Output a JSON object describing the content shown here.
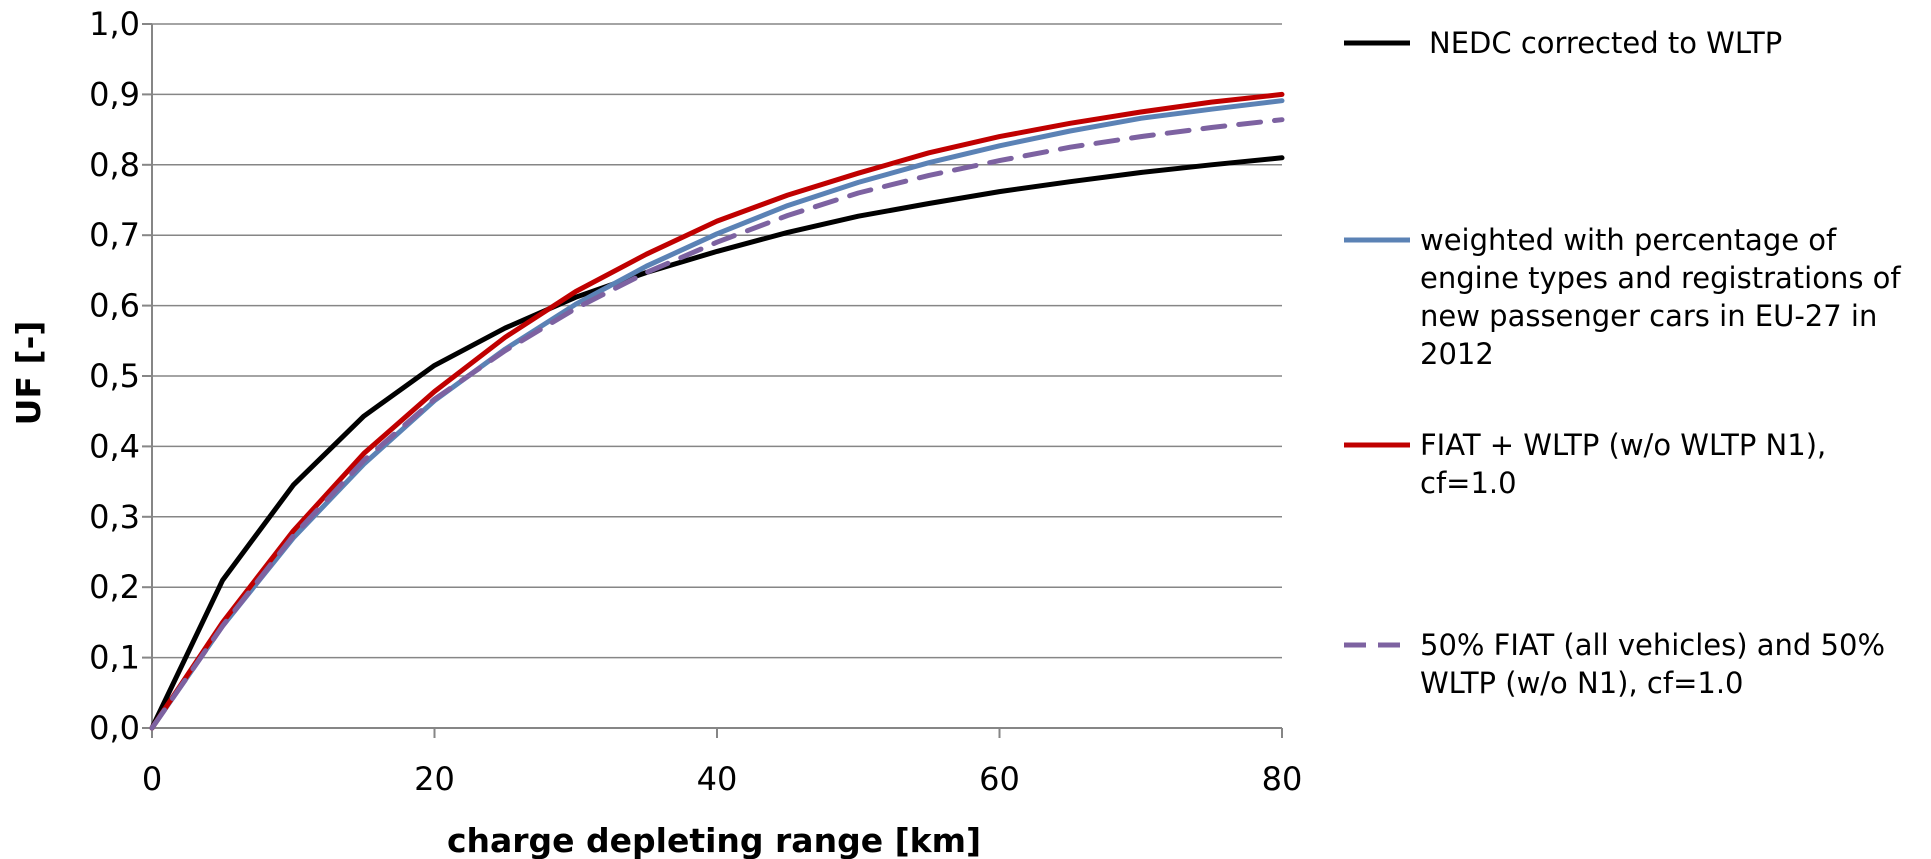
{
  "chart_data": {
    "type": "line",
    "title": "",
    "xlabel": "charge depleting range [km]",
    "ylabel": "UF [-]",
    "xlim": [
      0,
      80
    ],
    "ylim": [
      0,
      1
    ],
    "x_ticks": [
      "0",
      "20",
      "40",
      "60",
      "80"
    ],
    "y_ticks": [
      "0,0",
      "0,1",
      "0,2",
      "0,3",
      "0,4",
      "0,5",
      "0,6",
      "0,7",
      "0,8",
      "0,9",
      "1,0"
    ],
    "grid": true,
    "legend_position": "right",
    "series": [
      {
        "name": "NEDC corrected to WLTP",
        "color": "#000000",
        "dash": "solid",
        "x": [
          0,
          5,
          10,
          15,
          20,
          25,
          30,
          35,
          40,
          45,
          50,
          55,
          60,
          65,
          70,
          75,
          80
        ],
        "y": [
          0.0,
          0.21,
          0.345,
          0.443,
          0.515,
          0.568,
          0.612,
          0.647,
          0.677,
          0.704,
          0.727,
          0.745,
          0.762,
          0.776,
          0.789,
          0.8,
          0.81
        ],
        "legend_lines": [
          "NEDC corrected to WLTP"
        ]
      },
      {
        "name": "weighted with percentage of engine types and registrations of new passenger cars in EU-27 in 2012",
        "color": "#5b82b5",
        "dash": "solid",
        "x": [
          0,
          5,
          10,
          15,
          20,
          25,
          30,
          35,
          40,
          45,
          50,
          55,
          60,
          65,
          70,
          75,
          80
        ],
        "y": [
          0.0,
          0.145,
          0.27,
          0.375,
          0.465,
          0.538,
          0.602,
          0.656,
          0.702,
          0.742,
          0.775,
          0.803,
          0.827,
          0.848,
          0.866,
          0.879,
          0.891
        ],
        "legend_lines": [
          "weighted with percentage of",
          "engine types and registrations of",
          "new passenger cars in EU-27 in",
          "2012"
        ]
      },
      {
        "name": "FIAT + WLTP (w/o WLTP N1), cf=1.0",
        "color": "#c00000",
        "dash": "solid",
        "x": [
          0,
          5,
          10,
          15,
          20,
          25,
          30,
          35,
          40,
          45,
          50,
          55,
          60,
          65,
          70,
          75,
          80
        ],
        "y": [
          0.0,
          0.15,
          0.28,
          0.39,
          0.478,
          0.555,
          0.62,
          0.673,
          0.72,
          0.757,
          0.788,
          0.817,
          0.84,
          0.859,
          0.875,
          0.889,
          0.9
        ],
        "legend_lines": [
          "FIAT + WLTP (w/o WLTP N1),",
          "cf=1.0"
        ]
      },
      {
        "name": "50% FIAT (all vehicles) and 50% WLTP (w/o N1), cf=1.0",
        "color": "#7d62a1",
        "dash": "dashed",
        "x": [
          0,
          5,
          10,
          15,
          20,
          25,
          30,
          35,
          40,
          45,
          50,
          55,
          60,
          65,
          70,
          75,
          80
        ],
        "y": [
          0.0,
          0.145,
          0.273,
          0.38,
          0.467,
          0.536,
          0.596,
          0.647,
          0.69,
          0.728,
          0.76,
          0.785,
          0.806,
          0.825,
          0.84,
          0.853,
          0.864
        ],
        "legend_lines": [
          "50% FIAT (all vehicles) and  50%",
          "WLTP (w/o N1), cf=1.0"
        ]
      }
    ]
  }
}
